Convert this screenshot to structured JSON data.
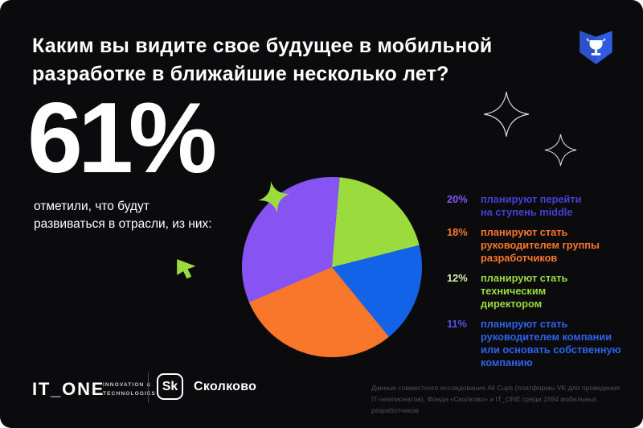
{
  "card": {
    "title": "Каким вы видите свое будущее в мобильной\nразработке в ближайшие несколько лет?"
  },
  "stat": {
    "value": "61%",
    "description": "отметили, что будут\nразвиваться в отрасли, из них:"
  },
  "chart_data": {
    "type": "pie",
    "title": "Каким вы видите свое будущее в мобильной разработке в ближайшие несколько лет?",
    "headline_stat": "61% отметили, что будут развиваться в отрасли",
    "labels": [
      "планируют перейти на ступень middle",
      "планируют стать руководителем группы разработчиков",
      "планируют стать техническим директором",
      "планируют стать руководителем компании или основать собственную компанию"
    ],
    "values": [
      20,
      18,
      12,
      11
    ],
    "colors": [
      "#8753F2",
      "#F8772A",
      "#9CDB3E",
      "#1263E8"
    ],
    "start_angle_deg": 5,
    "clockwise_order": [
      2,
      3,
      1,
      0
    ],
    "legend_position": "right",
    "units": "%"
  },
  "legend": {
    "items": [
      {
        "pct": "20%",
        "pct_color": "#8753F2",
        "text_color": "#463FD4",
        "text": "планируют перейти\nна ступень middle"
      },
      {
        "pct": "18%",
        "pct_color": "#F8772A",
        "text_color": "#F8772A",
        "text": "планируют стать\nруководителем группы\nразработчиков"
      },
      {
        "pct": "12%",
        "pct_color": "#D6EFAE",
        "text_color": "#9CDB3E",
        "text": "планируют стать\nтехническим\nдиректором"
      },
      {
        "pct": "11%",
        "pct_color": "#5A50E8",
        "text_color": "#2E62E8",
        "text": "планируют стать\nруководителем компании\nили основать собственную\nкомпанию"
      }
    ]
  },
  "footer": {
    "itone_logo": "IT_ONE",
    "itone_tagline": "INNOVATION &\nTECHNOLOGIES",
    "sk_logo": "Sk",
    "skolkovo_label": "Сколково",
    "source": "Данные совместного исследования All Cups (платформы VK для проведения\nIT-чемпионатов), Фонда «Сколково» и IT_ONE среди 1594 мобильных разработчиков"
  },
  "colors": {
    "background": "#0B0B0D",
    "purple": "#8753F2",
    "orange": "#F8772A",
    "lime": "#9CDB3E",
    "blue": "#1263E8",
    "badge_blue": "#2F5CE0"
  }
}
